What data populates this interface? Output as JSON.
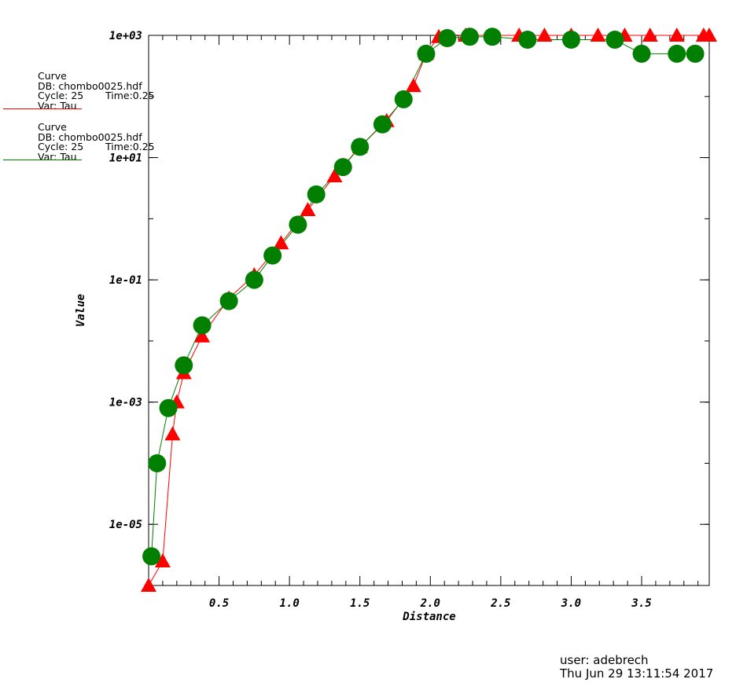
{
  "chart_data": {
    "type": "line",
    "xlabel": "Distance",
    "ylabel": "Value",
    "y_scale": "log",
    "xlim": [
      0.0,
      3.98
    ],
    "ylim": [
      1e-06,
      1000
    ],
    "x_ticks": [
      0.5,
      1.0,
      1.5,
      2.0,
      2.5,
      3.0,
      3.5
    ],
    "x_tick_labels": [
      "0.5",
      "1.0",
      "1.5",
      "2.0",
      "2.5",
      "3.0",
      "3.5"
    ],
    "y_ticks": [
      1e-05,
      0.001,
      0.1,
      10,
      1000
    ],
    "y_tick_labels": [
      "1e-05",
      "1e-03",
      "1e-01",
      "1e+01",
      "1e+03"
    ],
    "series": [
      {
        "name": "Var: Tau",
        "color": "#ff0000",
        "marker": "triangle",
        "x": [
          0.0,
          0.1,
          0.17,
          0.2,
          0.25,
          0.38,
          0.57,
          0.75,
          0.94,
          1.13,
          1.32,
          1.5,
          1.69,
          1.88,
          1.97,
          2.06,
          2.25,
          2.44,
          2.63,
          2.81,
          3.0,
          3.19,
          3.38,
          3.56,
          3.75,
          3.94,
          3.98
        ],
        "y": [
          1e-06,
          2.5e-06,
          0.0003,
          0.001,
          0.003,
          0.012,
          0.05,
          0.12,
          0.4,
          1.4,
          5.0,
          15,
          40,
          150,
          500,
          950,
          1000,
          1000,
          1000,
          1000,
          1000,
          1000,
          1000,
          1000,
          1000,
          1000,
          1000
        ]
      },
      {
        "name": "Var: Tau",
        "color": "#007f00",
        "marker": "circle",
        "x": [
          0.02,
          0.06,
          0.14,
          0.25,
          0.38,
          0.57,
          0.75,
          0.88,
          1.06,
          1.19,
          1.38,
          1.5,
          1.66,
          1.81,
          1.97,
          2.12,
          2.28,
          2.44,
          2.69,
          3.0,
          3.31,
          3.5,
          3.75,
          3.88
        ],
        "y": [
          3e-06,
          0.0001,
          0.0008,
          0.004,
          0.018,
          0.045,
          0.1,
          0.25,
          0.8,
          2.5,
          7,
          15,
          35,
          90,
          500,
          900,
          950,
          950,
          850,
          850,
          850,
          500,
          500,
          500
        ]
      }
    ],
    "legend": [
      {
        "title": "Curve",
        "db": "DB: chombo0025.hdf",
        "cycle": "Cycle: 25",
        "time": "Time:0.25",
        "var": "Var: Tau",
        "color": "#ff0000"
      },
      {
        "title": "Curve",
        "db": "DB: chombo0025.hdf",
        "cycle": "Cycle: 25",
        "time": "Time:0.25",
        "var": "Var: Tau",
        "color": "#007f00"
      }
    ]
  },
  "footer": {
    "user": "user: adebrech",
    "date": "Thu Jun 29 13:11:54 2017"
  }
}
